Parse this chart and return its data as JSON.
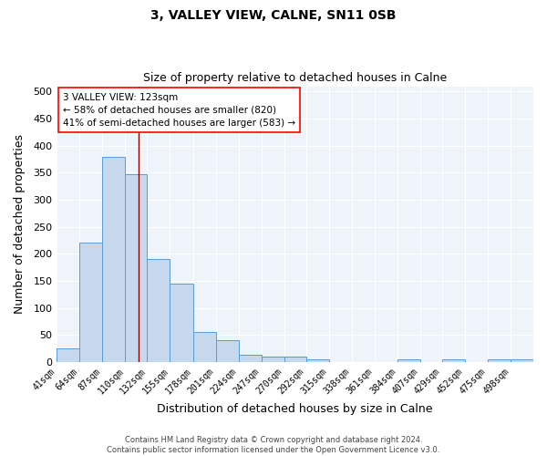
{
  "title1": "3, VALLEY VIEW, CALNE, SN11 0SB",
  "title2": "Size of property relative to detached houses in Calne",
  "xlabel": "Distribution of detached houses by size in Calne",
  "ylabel": "Number of detached properties",
  "categories": [
    "41sqm",
    "64sqm",
    "87sqm",
    "110sqm",
    "132sqm",
    "155sqm",
    "178sqm",
    "201sqm",
    "224sqm",
    "247sqm",
    "270sqm",
    "292sqm",
    "315sqm",
    "338sqm",
    "361sqm",
    "384sqm",
    "407sqm",
    "429sqm",
    "452sqm",
    "475sqm",
    "498sqm"
  ],
  "values": [
    25,
    220,
    380,
    348,
    190,
    145,
    55,
    41,
    13,
    9,
    9,
    4,
    0,
    0,
    0,
    5,
    0,
    5,
    0,
    5,
    5
  ],
  "bar_color": "#c5d8ed",
  "bar_edge_color": "#5b9bd5",
  "property_line_x": 123,
  "property_line_color": "#8B0000",
  "annotation_line1": "3 VALLEY VIEW: 123sqm",
  "annotation_line2": "← 58% of detached houses are smaller (820)",
  "annotation_line3": "41% of semi-detached houses are larger (583) →",
  "annotation_box_color": "white",
  "annotation_box_edge_color": "red",
  "ylim": [
    0,
    510
  ],
  "yticks": [
    0,
    50,
    100,
    150,
    200,
    250,
    300,
    350,
    400,
    450,
    500
  ],
  "bg_color": "#EEF4FA",
  "grid_color": "white",
  "footnote": "Contains HM Land Registry data © Crown copyright and database right 2024.\nContains public sector information licensed under the Open Government Licence v3.0.",
  "bin_edges": [
    41,
    64,
    87,
    110,
    132,
    155,
    178,
    201,
    224,
    247,
    270,
    292,
    315,
    338,
    361,
    384,
    407,
    429,
    452,
    475,
    498,
    521
  ]
}
